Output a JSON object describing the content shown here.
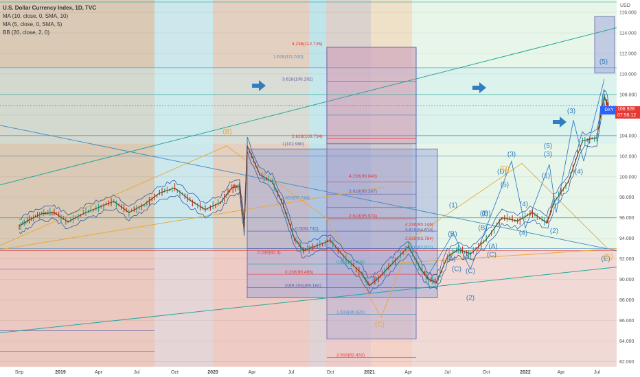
{
  "legend": {
    "title": "U.S. Dollar Currency Index, 1D, TVC",
    "ma10": "MA (10, close, 0, SMA, 10)",
    "ma5": "MA (5, close, 0, SMA, 5)",
    "bb": "BB (20, close, 2, 0)"
  },
  "currency_label": "USD",
  "symbol_badge": "DXY",
  "last_price": "106.928",
  "countdown": "07:58:12",
  "colors": {
    "bg_up": "#ffffff",
    "accent": "#2962ff",
    "down": "#e53935",
    "wave": "#2f7ec1",
    "abc": "#f0a020"
  },
  "chart_data": {
    "type": "line",
    "x_ticks": [
      "Sep",
      "2019",
      "Apr",
      "Jul",
      "Oct",
      "2020",
      "Apr",
      "Jul",
      "Oct",
      "2021",
      "Apr",
      "Jul",
      "Oct",
      "2022",
      "Apr",
      "Jul"
    ],
    "y_ticks": [
      "116.000",
      "114.000",
      "112.000",
      "110.000",
      "108.000",
      "106.000",
      "104.000",
      "102.000",
      "100.000",
      "98.000",
      "96.000",
      "94.000",
      "92.000",
      "90.000",
      "88.000",
      "86.000",
      "84.000",
      "82.000"
    ],
    "ylim": [
      81.5,
      117.2
    ],
    "series": [
      {
        "values": [
          [
            2018.67,
            95.2
          ],
          [
            2018.75,
            95.8
          ],
          [
            2018.85,
            96.4
          ],
          [
            2018.95,
            96.5
          ],
          [
            2019.05,
            95.6
          ],
          [
            2019.15,
            96.4
          ],
          [
            2019.25,
            97.0
          ],
          [
            2019.35,
            97.6
          ],
          [
            2019.45,
            96.5
          ],
          [
            2019.55,
            97.3
          ],
          [
            2019.65,
            98.4
          ],
          [
            2019.75,
            98.9
          ],
          [
            2019.85,
            97.7
          ],
          [
            2019.95,
            96.8
          ],
          [
            2020.05,
            97.5
          ],
          [
            2020.12,
            98.9
          ],
          [
            2020.17,
            99.1
          ],
          [
            2020.2,
            95.1
          ],
          [
            2020.22,
            103.0
          ],
          [
            2020.3,
            100.2
          ],
          [
            2020.38,
            99.5
          ],
          [
            2020.45,
            97.2
          ],
          [
            2020.52,
            94.0
          ],
          [
            2020.58,
            92.8
          ],
          [
            2020.65,
            93.2
          ],
          [
            2020.75,
            93.8
          ],
          [
            2020.85,
            92.0
          ],
          [
            2020.95,
            90.6
          ],
          [
            2021.0,
            89.4
          ],
          [
            2021.07,
            90.3
          ],
          [
            2021.15,
            91.6
          ],
          [
            2021.25,
            93.2
          ],
          [
            2021.33,
            91.0
          ],
          [
            2021.38,
            90.0
          ],
          [
            2021.43,
            89.7
          ],
          [
            2021.5,
            92.2
          ],
          [
            2021.57,
            92.9
          ],
          [
            2021.65,
            92.5
          ],
          [
            2021.75,
            93.9
          ],
          [
            2021.85,
            96.0
          ],
          [
            2021.95,
            95.7
          ],
          [
            2022.05,
            96.5
          ],
          [
            2022.15,
            95.5
          ],
          [
            2022.2,
            97.5
          ],
          [
            2022.3,
            99.5
          ],
          [
            2022.4,
            103.5
          ],
          [
            2022.5,
            103.8
          ],
          [
            2022.55,
            107.8
          ],
          [
            2022.58,
            106.9
          ]
        ]
      }
    ],
    "annotations": {
      "fib_labels": [
        "4.236(112.726)",
        "1.618(111.510)",
        "3.618(109.292)",
        "2.618(103.734)",
        "1(102.990)",
        "4.236(95.146)",
        "3.618(94.618)",
        "2.618(93.764)",
        "1.618(92.911)",
        "0.236(90.496)",
        "0(89.204)(89.184)",
        "1.618(86.620)",
        "2.618(82.432)",
        "4.236(99.849)",
        "3.618(98.367)",
        "2.618(95.974)",
        "1.618(97.744)",
        "0.5(94.742)",
        "0.236(92.4)",
        "0.618(91.488)"
      ],
      "waves": [
        "(1)",
        "(2)",
        "(3)",
        "(4)",
        "(5)",
        "(A)",
        "(B)",
        "(C)",
        "(D)",
        "(E)"
      ],
      "abc_labels": [
        "(B)",
        "(C)",
        "(D)",
        "(E)"
      ]
    }
  }
}
